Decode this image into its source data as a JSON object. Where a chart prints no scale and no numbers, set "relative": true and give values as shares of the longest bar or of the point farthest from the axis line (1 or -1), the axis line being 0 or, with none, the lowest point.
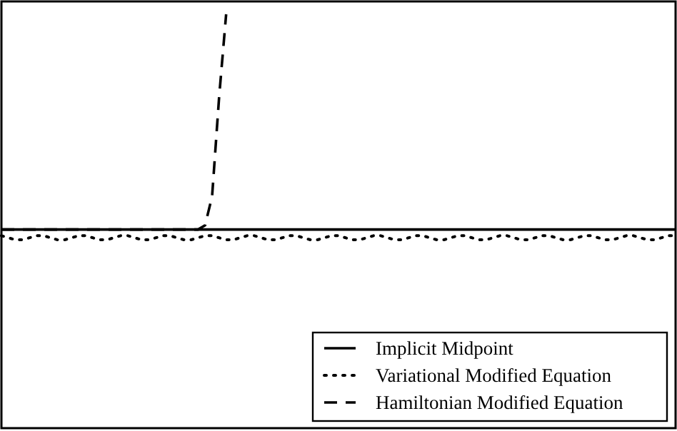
{
  "chart_data": {
    "type": "line",
    "relative": true,
    "legend": "bottom right",
    "categories": [
      null,
      null,
      null,
      null,
      null,
      null,
      null,
      null,
      null,
      null,
      null,
      null,
      null,
      null,
      null,
      null,
      null,
      null,
      null,
      null,
      null,
      null,
      null,
      null,
      null,
      null,
      null,
      null,
      null,
      null,
      null,
      null,
      null,
      null,
      null,
      null,
      null,
      null,
      null,
      null,
      null,
      null,
      null,
      null,
      null,
      null,
      null,
      null,
      null,
      null,
      null,
      null,
      null,
      null,
      null,
      null,
      null,
      null,
      null,
      null,
      null,
      null,
      null,
      null,
      null,
      null,
      null,
      null,
      null,
      null,
      null,
      null,
      null,
      null,
      null,
      null,
      null,
      null,
      null,
      null,
      null,
      null,
      null,
      null,
      null,
      null,
      null,
      null,
      null,
      null,
      null,
      null,
      null,
      null,
      null,
      null,
      null
    ],
    "series": [
      {
        "name": "Implicit Midpoint",
        "color": "#000000",
        "line_style": "solid",
        "values": [
          0.48,
          0.48,
          0.48,
          0.48,
          0.48,
          0.48,
          0.48,
          0.48,
          0.48,
          0.48,
          0.48,
          0.48,
          0.48,
          0.48,
          0.48,
          0.48,
          0.48,
          0.48,
          0.48,
          0.48,
          0.48,
          0.48,
          0.48,
          0.48,
          0.48,
          0.48,
          0.48,
          0.48,
          0.48,
          0.48,
          0.48,
          0.48,
          0.48,
          0.48,
          0.48,
          0.48,
          0.48,
          0.48,
          0.48,
          0.48,
          0.48,
          0.48,
          0.48,
          0.48,
          0.48,
          0.48,
          0.48,
          0.48,
          0.48,
          0.48,
          0.48,
          0.48,
          0.48,
          0.48,
          0.48,
          0.48,
          0.48,
          0.48,
          0.48,
          0.48,
          0.48,
          0.48,
          0.48,
          0.48,
          0.48,
          0.48,
          0.48,
          0.48,
          0.48,
          0.48,
          0.48,
          0.48,
          0.48,
          0.48,
          0.48,
          0.48,
          0.48,
          0.48,
          0.48,
          0.48,
          0.48,
          0.48,
          0.48,
          0.48,
          0.48,
          0.48,
          0.48,
          0.48,
          0.48,
          0.48,
          0.48,
          0.48,
          0.48,
          0.48,
          0.48,
          0.48,
          0.48
        ]
      },
      {
        "name": "Variational Modified Equation",
        "color": "#000000",
        "line_style": "dotted",
        "values": [
          0.465,
          0.46,
          0.455,
          0.455,
          0.46,
          0.465,
          0.465,
          0.46,
          0.455,
          0.455,
          0.46,
          0.465,
          0.465,
          0.46,
          0.455,
          0.455,
          0.46,
          0.465,
          0.465,
          0.46,
          0.455,
          0.455,
          0.46,
          0.465,
          0.465,
          0.46,
          0.455,
          0.455,
          0.46,
          0.465,
          0.465,
          0.46,
          0.455,
          0.455,
          0.46,
          0.465,
          0.465,
          0.46,
          0.455,
          0.455,
          0.46,
          0.465,
          0.465,
          0.46,
          0.455,
          0.455,
          0.46,
          0.465,
          0.465,
          0.46,
          0.455,
          0.455,
          0.46,
          0.465,
          0.465,
          0.46,
          0.455,
          0.455,
          0.46,
          0.465,
          0.465,
          0.46,
          0.455,
          0.455,
          0.46,
          0.465,
          0.465,
          0.46,
          0.455,
          0.455,
          0.46,
          0.465,
          0.465,
          0.46,
          0.455,
          0.455,
          0.46,
          0.465,
          0.465,
          0.46,
          0.455,
          0.455,
          0.46,
          0.465,
          0.465,
          0.46,
          0.455,
          0.455,
          0.46,
          0.465,
          0.465,
          0.46,
          0.455,
          0.455,
          0.46,
          0.465,
          0.465
        ]
      },
      {
        "name": "Hamiltonian Modified Equation",
        "color": "#000000",
        "line_style": "dashed",
        "values": [
          0.48,
          0.48,
          0.48,
          0.48,
          0.48,
          0.48,
          0.48,
          0.48,
          0.48,
          0.48,
          0.48,
          0.48,
          0.48,
          0.48,
          0.48,
          0.48,
          0.48,
          0.48,
          0.48,
          0.48,
          0.48,
          0.48,
          0.48,
          0.48,
          0.48,
          0.48,
          0.48,
          0.48,
          0.48,
          0.49,
          0.56,
          0.8,
          1,
          null,
          null,
          null,
          null,
          null,
          null,
          null,
          null,
          null,
          null,
          null,
          null,
          null,
          null,
          null,
          null,
          null,
          null,
          null,
          null,
          null,
          null,
          null,
          null,
          null,
          null,
          null,
          null,
          null,
          null,
          null,
          null,
          null,
          null,
          null,
          null,
          null,
          null,
          null,
          null,
          null,
          null,
          null,
          null,
          null,
          null,
          null,
          null,
          null,
          null,
          null,
          null,
          null,
          null,
          null,
          null,
          null,
          null,
          null,
          null,
          null,
          null,
          null,
          null
        ]
      }
    ]
  }
}
